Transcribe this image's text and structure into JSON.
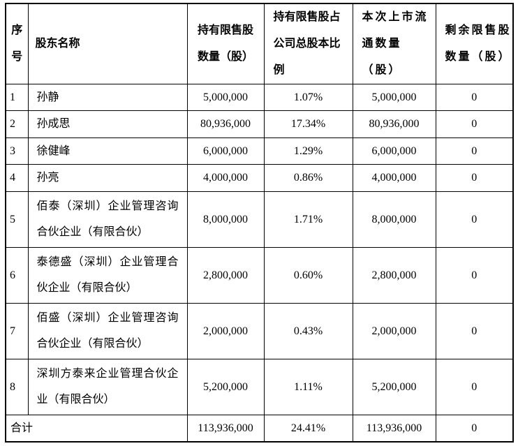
{
  "table": {
    "headers": {
      "no": "序\n号",
      "name": "股东名称",
      "held": "持有限售股\n数量（股）",
      "pct": "持有限售股占\n公司总股本比\n例",
      "listed": "本次上市流\n通数量（股）",
      "remaining": "剩余限售股\n数量（股）"
    },
    "rows": [
      {
        "no": "1",
        "name": "孙静",
        "held": "5,000,000",
        "pct": "1.07%",
        "listed": "5,000,000",
        "remaining": "0"
      },
      {
        "no": "2",
        "name": "孙成思",
        "held": "80,936,000",
        "pct": "17.34%",
        "listed": "80,936,000",
        "remaining": "0"
      },
      {
        "no": "3",
        "name": "徐健峰",
        "held": "6,000,000",
        "pct": "1.29%",
        "listed": "6,000,000",
        "remaining": "0"
      },
      {
        "no": "4",
        "name": "孙亮",
        "held": "4,000,000",
        "pct": "0.86%",
        "listed": "4,000,000",
        "remaining": "0"
      },
      {
        "no": "5",
        "name": "佰泰（深圳）企业管理咨询合伙企业（有限合伙）",
        "held": "8,000,000",
        "pct": "1.71%",
        "listed": "8,000,000",
        "remaining": "0"
      },
      {
        "no": "6",
        "name": "泰德盛（深圳）企业管理合伙企业（有限合伙）",
        "held": "2,800,000",
        "pct": "0.60%",
        "listed": "2,800,000",
        "remaining": "0"
      },
      {
        "no": "7",
        "name": "佰盛（深圳）企业管理咨询合伙企业（有限合伙）",
        "held": "2,000,000",
        "pct": "0.43%",
        "listed": "2,000,000",
        "remaining": "0"
      },
      {
        "no": "8",
        "name": "深圳方泰来企业管理合伙企业（有限合伙）",
        "held": "5,200,000",
        "pct": "1.11%",
        "listed": "5,200,000",
        "remaining": "0"
      }
    ],
    "total": {
      "label": "合计",
      "held": "113,936,000",
      "pct": "24.41%",
      "listed": "113,936,000",
      "remaining": "0"
    }
  },
  "colors": {
    "text": "#000000",
    "border": "#000000",
    "background": "#ffffff"
  }
}
